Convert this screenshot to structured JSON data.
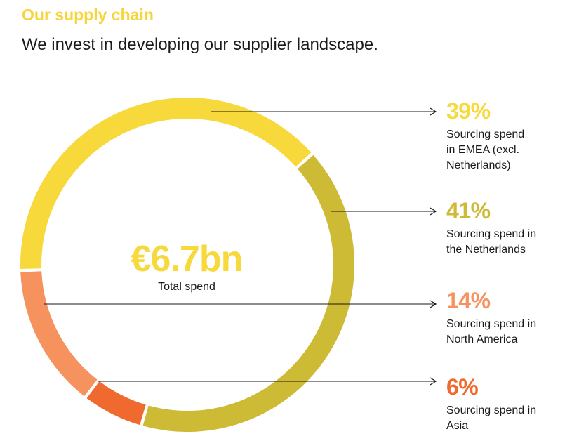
{
  "header": {
    "title": "Our supply chain",
    "subtitle": "We invest in developing our supplier landscape.",
    "title_color": "#F7D43A"
  },
  "center": {
    "value": "€6.7bn",
    "label": "Total spend"
  },
  "chart_data": {
    "type": "pie",
    "donut": true,
    "categories": [
      "EMEA (excl. Netherlands)",
      "Netherlands",
      "Asia",
      "North America"
    ],
    "values": [
      39,
      41,
      6,
      14
    ],
    "colors": [
      "#F7D93C",
      "#CDBA35",
      "#F0692E",
      "#F5925E"
    ],
    "total_label": "€6.7bn",
    "total_sublabel": "Total spend"
  },
  "callouts": [
    {
      "pct": "39%",
      "desc": "Sourcing spend\nin EMEA (excl.\nNetherlands)",
      "color": "#F7D93C"
    },
    {
      "pct": "41%",
      "desc": "Sourcing spend in\nthe Netherlands",
      "color": "#CDBA35"
    },
    {
      "pct": "14%",
      "desc": "Sourcing spend in\nNorth America",
      "color": "#F5925E"
    },
    {
      "pct": "6%",
      "desc": "Sourcing spend in\nAsia",
      "color": "#F0692E"
    }
  ]
}
